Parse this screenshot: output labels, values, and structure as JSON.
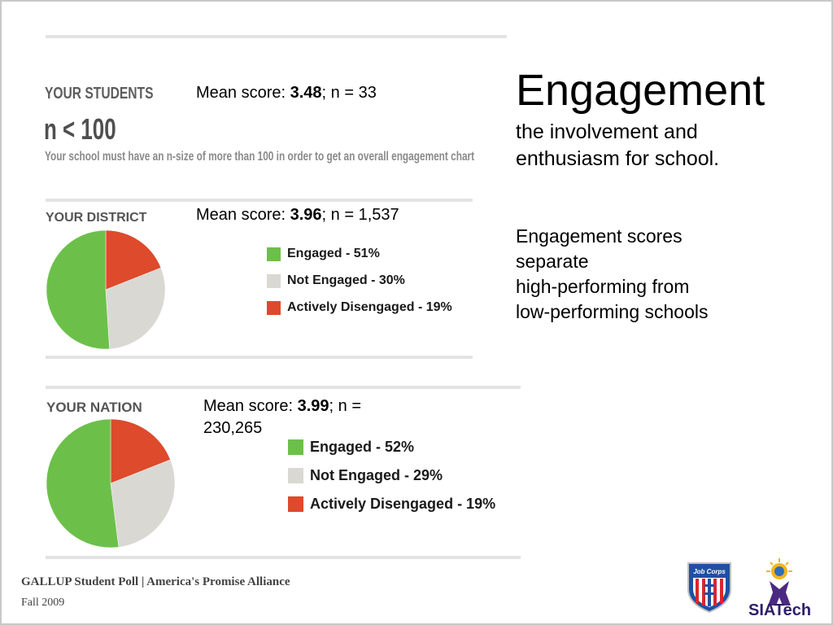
{
  "students": {
    "heading": "YOUR STUDENTS",
    "big": "n < 100",
    "note": "Your school must have an n-size of more than 100 in order to get an overall engagement chart",
    "mean_prefix": "Mean score: ",
    "mean_value": "3.48",
    "mean_suffix": "; n = 33"
  },
  "district": {
    "heading": "YOUR DISTRICT",
    "mean_prefix": "Mean score: ",
    "mean_value": "3.96",
    "mean_suffix": "; n = 1,537",
    "legend": [
      "Engaged - 51%",
      "Not Engaged - 30%",
      "Actively Disengaged - 19%"
    ]
  },
  "nation": {
    "heading": "YOUR NATION",
    "mean_prefix": "Mean score: ",
    "mean_value": "3.99",
    "mean_suffix": "; n =",
    "mean_line2": "230,265",
    "legend": [
      "Engaged - 52%",
      "Not Engaged - 29%",
      "Actively Disengaged - 19%"
    ]
  },
  "right": {
    "title": "Engagement",
    "subtitle": "the involvement and enthusiasm for school.",
    "body_lines": [
      "Engagement scores",
      "separate",
      "high-performing from",
      "low-performing schools"
    ]
  },
  "footer": {
    "line1": "GALLUP Student Poll | America's Promise Alliance",
    "line2": "Fall 2009"
  },
  "logos": {
    "jobcorps": "Job Corps",
    "siatech": "SIATech"
  },
  "colors": {
    "engaged": "#6cc04a",
    "not_engaged": "#d9d8d2",
    "disengaged": "#dd4a2c"
  },
  "chart_data": [
    {
      "type": "pie",
      "title": "YOUR DISTRICT",
      "categories": [
        "Engaged",
        "Not Engaged",
        "Actively Disengaged"
      ],
      "values": [
        51,
        30,
        19
      ],
      "legend": "right"
    },
    {
      "type": "pie",
      "title": "YOUR NATION",
      "categories": [
        "Engaged",
        "Not Engaged",
        "Actively Disengaged"
      ],
      "values": [
        52,
        29,
        19
      ],
      "legend": "right"
    }
  ]
}
